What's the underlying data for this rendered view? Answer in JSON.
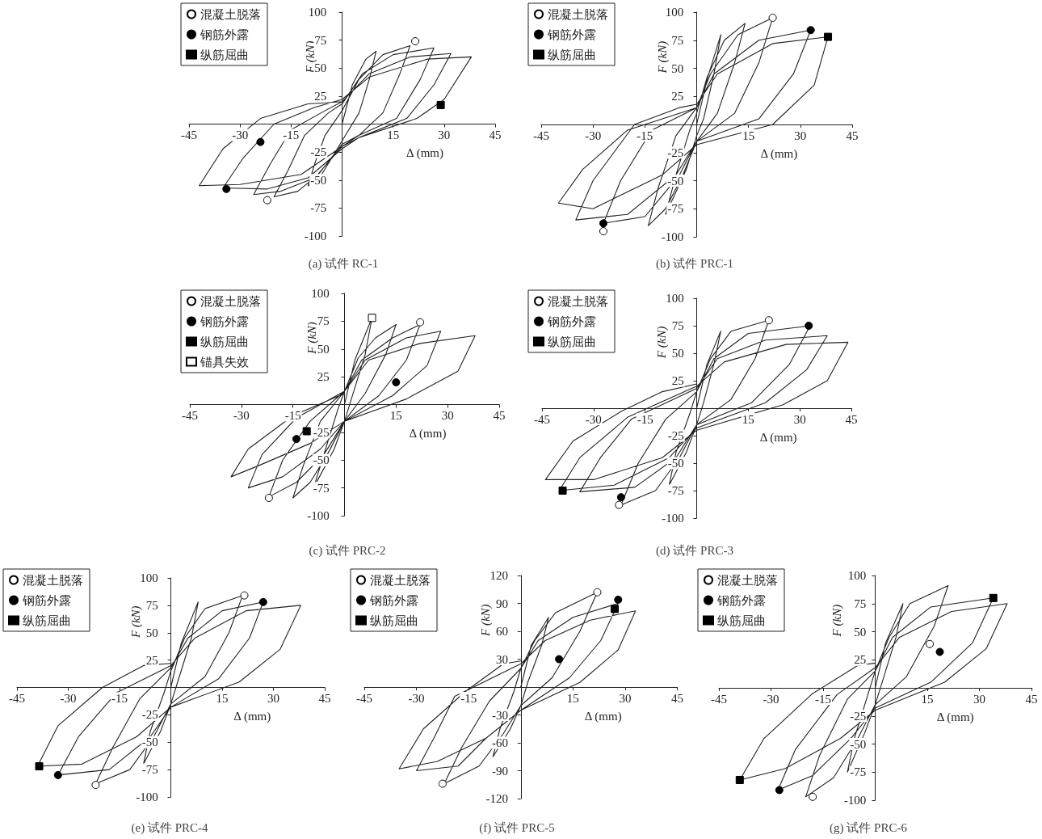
{
  "chart_data": [
    {
      "type": "line",
      "title": "(a) 试件 RC-1",
      "xlabel": "Δ (mm)",
      "ylabel": "F (kN)",
      "xlim": [
        -45,
        45
      ],
      "ylim": [
        -100,
        100
      ],
      "xticks": [
        -45,
        -30,
        -15,
        15,
        30,
        45
      ],
      "yticks": [
        -100,
        -75,
        -50,
        -25,
        25,
        50,
        75,
        100
      ],
      "legend": "top left",
      "series": [
        {
          "type": "line",
          "color": "#222222",
          "marker": "none",
          "x": [
            0,
            3,
            7,
            10,
            8,
            5,
            0,
            -4,
            -7,
            -10,
            -8,
            -5,
            0,
            5,
            12,
            20,
            17,
            12,
            5,
            0,
            -7,
            -13,
            -20,
            -16,
            -11,
            -4,
            0,
            6,
            15,
            27,
            23,
            16,
            5,
            0,
            -8,
            -18,
            -26,
            -21,
            -15,
            -5,
            0,
            8,
            20,
            32,
            27,
            19,
            5,
            0,
            -10,
            -22,
            -35,
            -29,
            -20,
            -8,
            0,
            8,
            25,
            38,
            30,
            22,
            5,
            0,
            -12,
            -30,
            -42,
            -35,
            -24,
            -10,
            0
          ],
          "values": [
            0,
            35,
            58,
            65,
            40,
            10,
            -15,
            -35,
            -50,
            -55,
            -35,
            -10,
            12,
            40,
            62,
            70,
            45,
            10,
            -10,
            -18,
            -45,
            -60,
            -65,
            -42,
            -10,
            10,
            18,
            45,
            62,
            68,
            40,
            5,
            -10,
            -20,
            -48,
            -60,
            -63,
            -35,
            -5,
            12,
            20,
            45,
            60,
            63,
            35,
            5,
            -12,
            -22,
            -48,
            -58,
            -57,
            -30,
            0,
            15,
            22,
            42,
            58,
            60,
            22,
            5,
            -12,
            -20,
            -45,
            -54,
            -55,
            -22,
            5,
            18,
            20
          ]
        },
        {
          "type": "scatter",
          "name": "混凝土脱落",
          "color": "#ffffff",
          "marker": "circle",
          "x": [
            21.5,
            -22
          ],
          "values": [
            74,
            -68
          ]
        },
        {
          "type": "scatter",
          "name": "钢筋外露",
          "color": "#000000",
          "marker": "circle",
          "x": [
            -24,
            -34
          ],
          "values": [
            -16,
            -58
          ]
        },
        {
          "type": "scatter",
          "name": "纵筋屈曲",
          "color": "#000000",
          "marker": "square",
          "x": [
            29
          ],
          "values": [
            17
          ]
        }
      ]
    },
    {
      "type": "line",
      "title": "(b) 试件 PRC-1",
      "xlabel": "Δ (mm)",
      "ylabel": "F (kN)",
      "xlim": [
        -45,
        45
      ],
      "ylim": [
        -100,
        100
      ],
      "xticks": [
        -45,
        -30,
        -15,
        15,
        30,
        45
      ],
      "yticks": [
        -100,
        -75,
        -50,
        -25,
        25,
        50,
        75,
        100
      ],
      "legend": "top left",
      "series": [
        {
          "type": "line",
          "color": "#222222",
          "marker": "none",
          "x": [
            0,
            3,
            7,
            5,
            2,
            0,
            -3,
            -9,
            -6,
            -2,
            0,
            3,
            8,
            14,
            11,
            6,
            0,
            -4,
            -9,
            -14,
            -11,
            -6,
            0,
            4,
            12,
            22,
            18,
            11,
            0,
            -5,
            -15,
            -27,
            -22,
            -13,
            0,
            5,
            18,
            33,
            28,
            18,
            0,
            -6,
            -20,
            -35,
            -30,
            -18,
            -5,
            0,
            6,
            22,
            38,
            34,
            22,
            0,
            -10,
            -30,
            -40,
            -33,
            -20,
            0
          ],
          "values": [
            0,
            40,
            80,
            45,
            5,
            -10,
            -40,
            -80,
            -45,
            -5,
            10,
            42,
            75,
            90,
            55,
            10,
            -15,
            -45,
            -75,
            -90,
            -55,
            -10,
            15,
            45,
            80,
            95,
            55,
            10,
            -15,
            -45,
            -82,
            -88,
            -50,
            -5,
            15,
            45,
            75,
            84,
            45,
            5,
            -15,
            -45,
            -80,
            -85,
            -50,
            0,
            15,
            18,
            45,
            72,
            78,
            35,
            0,
            -18,
            -45,
            -75,
            -70,
            -40,
            -5,
            15
          ]
        },
        {
          "type": "scatter",
          "name": "混凝土脱落",
          "color": "#ffffff",
          "marker": "circle",
          "x": [
            22,
            -27
          ],
          "values": [
            95,
            -95
          ]
        },
        {
          "type": "scatter",
          "name": "钢筋外露",
          "color": "#000000",
          "marker": "circle",
          "x": [
            33,
            -27
          ],
          "values": [
            84,
            -88
          ]
        },
        {
          "type": "scatter",
          "name": "纵筋屈曲",
          "color": "#000000",
          "marker": "square",
          "x": [
            38
          ],
          "values": [
            78
          ]
        }
      ]
    },
    {
      "type": "line",
      "title": "(c) 试件 PRC-2",
      "xlabel": "Δ (mm)",
      "ylabel": "F (kN)",
      "xlim": [
        -45,
        45
      ],
      "ylim": [
        -100,
        100
      ],
      "xticks": [
        -45,
        -30,
        -15,
        15,
        30,
        45
      ],
      "yticks": [
        -100,
        -75,
        -50,
        -25,
        25,
        50,
        75,
        100
      ],
      "legend": "top left",
      "series": [
        {
          "type": "line",
          "color": "#222222",
          "marker": "none",
          "x": [
            0,
            3,
            8,
            6,
            2,
            0,
            -3,
            -9,
            -6,
            -2,
            0,
            4,
            9,
            15,
            12,
            6,
            0,
            -5,
            -10,
            -15,
            -12,
            -7,
            0,
            5,
            14,
            22,
            18,
            10,
            0,
            -6,
            -14,
            -22,
            -18,
            -10,
            0,
            6,
            18,
            28,
            24,
            14,
            0,
            -7,
            -18,
            -28,
            -24,
            -14,
            0,
            7,
            22,
            38,
            33,
            18,
            0,
            -10,
            -25,
            -33,
            -28,
            -15,
            0
          ],
          "values": [
            0,
            40,
            78,
            45,
            5,
            -15,
            -40,
            -75,
            -45,
            -5,
            12,
            42,
            60,
            72,
            45,
            10,
            -15,
            -45,
            -70,
            -84,
            -55,
            -15,
            12,
            40,
            60,
            72,
            40,
            8,
            -15,
            -45,
            -70,
            -83,
            -50,
            -15,
            12,
            40,
            60,
            66,
            35,
            8,
            -15,
            -40,
            -65,
            -75,
            -45,
            -12,
            12,
            40,
            55,
            62,
            30,
            5,
            -15,
            -35,
            -55,
            -65,
            -40,
            -10,
            10
          ]
        },
        {
          "type": "scatter",
          "name": "混凝土脱落",
          "color": "#ffffff",
          "marker": "circle",
          "x": [
            22,
            -22
          ],
          "values": [
            74,
            -84
          ]
        },
        {
          "type": "scatter",
          "name": "钢筋外露",
          "color": "#000000",
          "marker": "circle",
          "x": [
            15,
            -14
          ],
          "values": [
            20,
            -31
          ]
        },
        {
          "type": "scatter",
          "name": "纵筋屈曲",
          "color": "#000000",
          "marker": "square",
          "x": [
            -11
          ],
          "values": [
            -24
          ]
        },
        {
          "type": "scatter",
          "name": "锚具失效",
          "color": "#ffffff",
          "marker": "square",
          "x": [
            8
          ],
          "values": [
            78
          ]
        }
      ]
    },
    {
      "type": "line",
      "title": "(d) 试件 PRC-3",
      "xlabel": "Δ (mm)",
      "ylabel": "F (kN)",
      "xlim": [
        -45,
        45
      ],
      "ylim": [
        -100,
        100
      ],
      "xticks": [
        -45,
        -30,
        -15,
        15,
        30,
        45
      ],
      "yticks": [
        -100,
        -75,
        -50,
        -25,
        25,
        50,
        75,
        100
      ],
      "legend": "top left",
      "series": [
        {
          "type": "line",
          "color": "#222222",
          "marker": "none",
          "x": [
            0,
            3,
            7,
            5,
            2,
            0,
            -3,
            -8,
            -6,
            -2,
            0,
            4,
            10,
            21,
            17,
            10,
            0,
            -5,
            -12,
            -22,
            -17,
            -9,
            0,
            5,
            15,
            33,
            27,
            16,
            0,
            -6,
            -18,
            -34,
            -28,
            -19,
            0,
            6,
            20,
            38,
            32,
            20,
            0,
            -8,
            -24,
            -40,
            -34,
            -20,
            0,
            8,
            26,
            44,
            38,
            25,
            0,
            -10,
            -30,
            -44,
            -36,
            -22,
            -10,
            0
          ],
          "values": [
            0,
            40,
            70,
            40,
            5,
            -15,
            -40,
            -70,
            -40,
            -5,
            15,
            45,
            70,
            80,
            45,
            8,
            -15,
            -45,
            -75,
            -88,
            -50,
            -10,
            15,
            45,
            68,
            75,
            40,
            5,
            -15,
            -45,
            -72,
            -76,
            -45,
            -10,
            18,
            45,
            62,
            66,
            35,
            5,
            -18,
            -45,
            -70,
            -75,
            -45,
            -8,
            20,
            42,
            58,
            60,
            25,
            3,
            -20,
            -45,
            -65,
            -65,
            -30,
            -3,
            15,
            22
          ]
        },
        {
          "type": "scatter",
          "name": "混凝土脱落",
          "color": "#ffffff",
          "marker": "circle",
          "x": [
            21,
            -22.6
          ],
          "values": [
            80,
            -88
          ]
        },
        {
          "type": "scatter",
          "name": "钢筋外露",
          "color": "#000000",
          "marker": "circle",
          "x": [
            32.6,
            -22
          ],
          "values": [
            75,
            -81
          ]
        },
        {
          "type": "scatter",
          "name": "纵筋屈曲",
          "color": "#000000",
          "marker": "square",
          "x": [
            -39
          ],
          "values": [
            -75
          ]
        }
      ]
    },
    {
      "type": "line",
      "title": "(e) 试件 PRC-4",
      "xlabel": "Δ (mm)",
      "ylabel": "F (kN)",
      "xlim": [
        -45,
        45
      ],
      "ylim": [
        -100,
        100
      ],
      "xticks": [
        -45,
        -30,
        -15,
        15,
        30,
        45
      ],
      "yticks": [
        -100,
        -75,
        -50,
        -25,
        25,
        50,
        75,
        100
      ],
      "legend": "top left",
      "series": [
        {
          "type": "line",
          "color": "#222222",
          "marker": "none",
          "x": [
            0,
            3,
            8,
            6,
            2,
            0,
            -3,
            -8,
            -6,
            -2,
            0,
            4,
            10,
            21,
            17,
            10,
            0,
            -5,
            -12,
            -22,
            -17,
            -9,
            0,
            5,
            15,
            27,
            23,
            14,
            0,
            -6,
            -18,
            -33,
            -27,
            -16,
            0,
            7,
            22,
            38,
            32,
            20,
            0,
            -10,
            -26,
            -39,
            -33,
            -20,
            -8,
            0
          ],
          "values": [
            0,
            40,
            78,
            45,
            5,
            -15,
            -40,
            -70,
            -40,
            -5,
            15,
            45,
            72,
            84,
            50,
            10,
            -15,
            -45,
            -75,
            -88,
            -55,
            -10,
            18,
            45,
            70,
            78,
            45,
            8,
            -18,
            -45,
            -75,
            -80,
            -45,
            -5,
            20,
            45,
            70,
            75,
            35,
            5,
            -18,
            -45,
            -70,
            -72,
            -35,
            0,
            20,
            22
          ]
        },
        {
          "type": "scatter",
          "name": "混凝土脱落",
          "color": "#ffffff",
          "marker": "circle",
          "x": [
            21.5,
            -22
          ],
          "values": [
            84,
            -89
          ]
        },
        {
          "type": "scatter",
          "name": "钢筋外露",
          "color": "#000000",
          "marker": "circle",
          "x": [
            27,
            -33
          ],
          "values": [
            78,
            -80
          ]
        },
        {
          "type": "scatter",
          "name": "纵筋屈曲",
          "color": "#000000",
          "marker": "square",
          "x": [
            -38.5
          ],
          "values": [
            -72
          ]
        }
      ]
    },
    {
      "type": "line",
      "title": "(f) 试件 PRC-5",
      "xlabel": "Δ (mm)",
      "ylabel": "F (kN)",
      "xlim": [
        -45,
        45
      ],
      "ylim": [
        -120,
        120
      ],
      "xticks": [
        -45,
        -30,
        -15,
        15,
        30,
        45
      ],
      "yticks": [
        -120,
        -90,
        -60,
        -30,
        30,
        60,
        90,
        120
      ],
      "legend": "top left",
      "series": [
        {
          "type": "line",
          "color": "#222222",
          "marker": "none",
          "x": [
            0,
            3,
            8,
            6,
            2,
            0,
            -3,
            -8,
            -6,
            -2,
            0,
            4,
            10,
            22,
            17,
            9,
            0,
            -5,
            -12,
            -22,
            -17,
            -9,
            0,
            5,
            15,
            28,
            23,
            14,
            0,
            -10,
            -18,
            -30,
            -25,
            -19,
            0,
            7,
            20,
            33,
            28,
            17,
            0,
            -10,
            -24,
            -35,
            -28,
            -16,
            -5,
            0
          ],
          "values": [
            0,
            45,
            75,
            45,
            5,
            -20,
            -45,
            -75,
            -45,
            -5,
            20,
            50,
            80,
            102,
            60,
            10,
            -20,
            -50,
            -85,
            -104,
            -65,
            -15,
            20,
            50,
            75,
            90,
            50,
            10,
            -25,
            -55,
            -85,
            -90,
            -55,
            -10,
            25,
            50,
            72,
            82,
            40,
            5,
            -25,
            -55,
            -80,
            -88,
            -45,
            -5,
            25,
            28
          ]
        },
        {
          "type": "scatter",
          "name": "混凝土脱落",
          "color": "#ffffff",
          "marker": "circle",
          "x": [
            22,
            -22.5
          ],
          "values": [
            102,
            -104
          ]
        },
        {
          "type": "scatter",
          "name": "钢筋外露",
          "color": "#000000",
          "marker": "circle",
          "x": [
            28,
            11
          ],
          "values": [
            94,
            30
          ]
        },
        {
          "type": "scatter",
          "name": "纵筋屈曲",
          "color": "#000000",
          "marker": "square",
          "x": [
            27
          ],
          "values": [
            84
          ]
        }
      ]
    },
    {
      "type": "line",
      "title": "(g) 试件 PRC-6",
      "xlabel": "Δ (mm)",
      "ylabel": "F (kN)",
      "xlim": [
        -45,
        45
      ],
      "ylim": [
        -100,
        100
      ],
      "xticks": [
        -45,
        -30,
        -15,
        15,
        30,
        45
      ],
      "yticks": [
        -100,
        -75,
        -50,
        -25,
        25,
        50,
        75,
        100
      ],
      "legend": "top left",
      "series": [
        {
          "type": "line",
          "color": "#222222",
          "marker": "none",
          "x": [
            0,
            3,
            8,
            6,
            2,
            0,
            -3,
            -8,
            -6,
            -2,
            0,
            4,
            10,
            21,
            17,
            9,
            0,
            -5,
            -12,
            -20,
            -16,
            -8,
            0,
            5,
            16,
            34,
            28,
            16,
            0,
            -7,
            -18,
            -28,
            -23,
            -11,
            0,
            7,
            22,
            38,
            32,
            20,
            0,
            -10,
            -26,
            -39,
            -32,
            -18,
            -5,
            0
          ],
          "values": [
            0,
            40,
            75,
            45,
            5,
            -15,
            -40,
            -75,
            -45,
            -5,
            15,
            45,
            75,
            91,
            55,
            10,
            -15,
            -45,
            -80,
            -97,
            -60,
            -10,
            15,
            45,
            72,
            80,
            40,
            5,
            -18,
            -45,
            -78,
            -91,
            -55,
            -6,
            18,
            45,
            68,
            75,
            35,
            5,
            -20,
            -45,
            -72,
            -82,
            -45,
            -5,
            20,
            22
          ]
        },
        {
          "type": "scatter",
          "name": "混凝土脱落",
          "color": "#ffffff",
          "marker": "circle",
          "x": [
            15.7,
            -18
          ],
          "values": [
            39,
            -97
          ]
        },
        {
          "type": "scatter",
          "name": "钢筋外露",
          "color": "#000000",
          "marker": "circle",
          "x": [
            18.6,
            -27.6
          ],
          "values": [
            32,
            -91
          ]
        },
        {
          "type": "scatter",
          "name": "纵筋屈曲",
          "color": "#000000",
          "marker": "square",
          "x": [
            34,
            -39
          ],
          "values": [
            80,
            -82
          ]
        }
      ]
    }
  ]
}
